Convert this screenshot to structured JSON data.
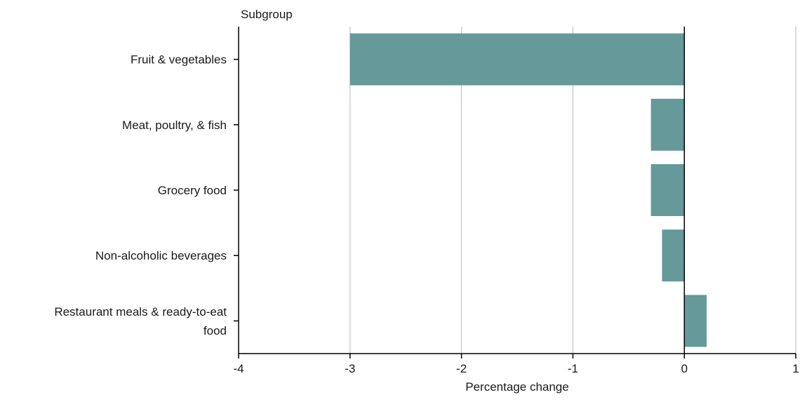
{
  "chart_data": {
    "type": "bar",
    "orientation": "horizontal",
    "category_axis_title": "Subgroup",
    "xlabel": "Percentage change",
    "categories": [
      [
        "Fruit & vegetables"
      ],
      [
        "Meat, poultry, & fish"
      ],
      [
        "Grocery food"
      ],
      [
        "Non-alcoholic beverages"
      ],
      [
        "Restaurant meals & ready-to-eat",
        "food"
      ]
    ],
    "values": [
      -3.0,
      -0.3,
      -0.3,
      -0.2,
      0.2
    ],
    "xlim": [
      -4,
      1
    ],
    "xticks": [
      -4,
      -3,
      -2,
      -1,
      0,
      1
    ],
    "xtick_labels": [
      "-4",
      "-3",
      "-2",
      "-1",
      "0",
      "1"
    ],
    "grid": "vertical",
    "colors": {
      "bar": "#669999",
      "grid": "#c4c4c4",
      "axis": "#000000"
    }
  }
}
